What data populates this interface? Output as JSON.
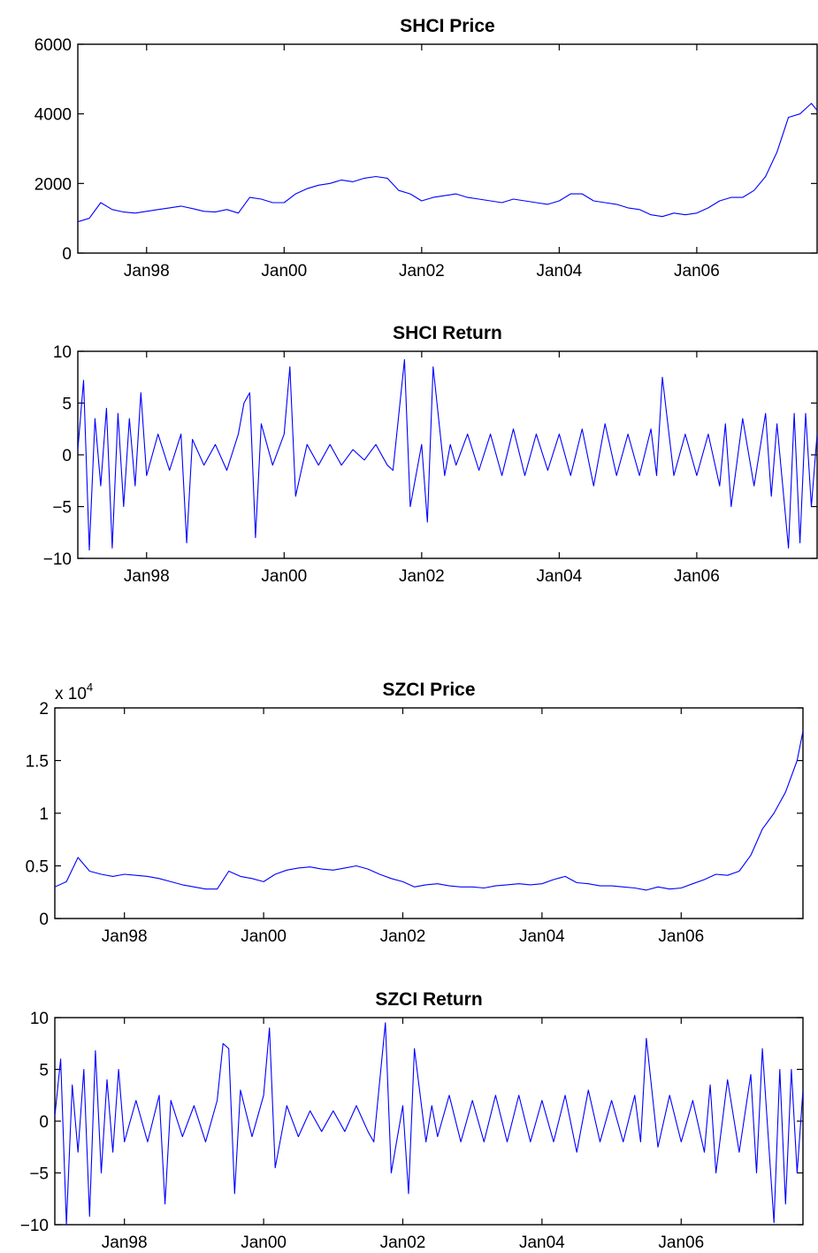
{
  "chart_data": [
    {
      "type": "line",
      "title": "SHCI Price",
      "xlabel": "",
      "ylabel": "",
      "x_range": [
        "1997-01",
        "2007-10"
      ],
      "ylim": [
        0,
        6000
      ],
      "yticks": [
        0,
        2000,
        4000,
        6000
      ],
      "ytick_labels": [
        "0",
        "2000",
        "4000",
        "6000"
      ],
      "y_exponent_label": "",
      "xticks": [
        "Jan98",
        "Jan00",
        "Jan02",
        "Jan04",
        "Jan06"
      ],
      "grid": false,
      "series": [
        {
          "color": "#0000ff",
          "x": [
            "1997-01",
            "1997-03",
            "1997-05",
            "1997-07",
            "1997-09",
            "1997-11",
            "1998-01",
            "1998-03",
            "1998-05",
            "1998-07",
            "1998-09",
            "1998-11",
            "1999-01",
            "1999-03",
            "1999-05",
            "1999-07",
            "1999-09",
            "1999-11",
            "2000-01",
            "2000-03",
            "2000-05",
            "2000-07",
            "2000-09",
            "2000-11",
            "2001-01",
            "2001-03",
            "2001-05",
            "2001-07",
            "2001-09",
            "2001-11",
            "2002-01",
            "2002-03",
            "2002-05",
            "2002-07",
            "2002-09",
            "2002-11",
            "2003-01",
            "2003-03",
            "2003-05",
            "2003-07",
            "2003-09",
            "2003-11",
            "2004-01",
            "2004-03",
            "2004-05",
            "2004-07",
            "2004-09",
            "2004-11",
            "2005-01",
            "2005-03",
            "2005-05",
            "2005-07",
            "2005-09",
            "2005-11",
            "2006-01",
            "2006-03",
            "2006-05",
            "2006-07",
            "2006-09",
            "2006-11",
            "2007-01",
            "2007-03",
            "2007-05",
            "2007-07",
            "2007-09",
            "2007-10"
          ],
          "values": [
            900,
            1000,
            1450,
            1250,
            1180,
            1150,
            1200,
            1250,
            1300,
            1350,
            1280,
            1200,
            1180,
            1250,
            1150,
            1600,
            1550,
            1450,
            1450,
            1700,
            1850,
            1950,
            2000,
            2100,
            2050,
            2150,
            2200,
            2150,
            1800,
            1700,
            1500,
            1600,
            1650,
            1700,
            1600,
            1550,
            1500,
            1450,
            1550,
            1500,
            1450,
            1400,
            1500,
            1700,
            1700,
            1500,
            1450,
            1400,
            1300,
            1250,
            1100,
            1050,
            1150,
            1100,
            1150,
            1300,
            1500,
            1600,
            1600,
            1800,
            2200,
            2900,
            3900,
            4000,
            4300,
            4100
          ]
        }
      ]
    },
    {
      "type": "line",
      "title": "SHCI Return",
      "xlabel": "",
      "ylabel": "",
      "x_range": [
        "1997-01",
        "2007-10"
      ],
      "ylim": [
        -10,
        10
      ],
      "yticks": [
        -10,
        -5,
        0,
        5,
        10
      ],
      "ytick_labels": [
        "−10",
        "−5",
        "0",
        "5",
        "10"
      ],
      "y_exponent_label": "",
      "xticks": [
        "Jan98",
        "Jan00",
        "Jan02",
        "Jan04",
        "Jan06"
      ],
      "grid": false,
      "series": [
        {
          "color": "#0000ff",
          "x": [
            "1997-01",
            "1997-02",
            "1997-03",
            "1997-04",
            "1997-05",
            "1997-06",
            "1997-07",
            "1997-08",
            "1997-09",
            "1997-10",
            "1997-11",
            "1997-12",
            "1998-01",
            "1998-03",
            "1998-05",
            "1998-07",
            "1998-08",
            "1998-09",
            "1998-11",
            "1999-01",
            "1999-03",
            "1999-05",
            "1999-06",
            "1999-07",
            "1999-08",
            "1999-09",
            "1999-11",
            "2000-01",
            "2000-02",
            "2000-03",
            "2000-05",
            "2000-07",
            "2000-09",
            "2000-11",
            "2001-01",
            "2001-03",
            "2001-05",
            "2001-07",
            "2001-08",
            "2001-10",
            "2001-11",
            "2002-01",
            "2002-02",
            "2002-03",
            "2002-05",
            "2002-06",
            "2002-07",
            "2002-09",
            "2002-11",
            "2003-01",
            "2003-03",
            "2003-05",
            "2003-07",
            "2003-09",
            "2003-11",
            "2004-01",
            "2004-03",
            "2004-05",
            "2004-07",
            "2004-09",
            "2004-11",
            "2005-01",
            "2005-03",
            "2005-05",
            "2005-06",
            "2005-07",
            "2005-09",
            "2005-11",
            "2006-01",
            "2006-03",
            "2006-05",
            "2006-06",
            "2006-07",
            "2006-09",
            "2006-11",
            "2007-01",
            "2007-02",
            "2007-03",
            "2007-05",
            "2007-06",
            "2007-07",
            "2007-08",
            "2007-09",
            "2007-10"
          ],
          "values": [
            0.5,
            7.2,
            -9.2,
            3.5,
            -3,
            4.5,
            -9,
            4,
            -5,
            3.5,
            -3,
            6,
            -2,
            2,
            -1.5,
            2,
            -8.5,
            1.5,
            -1,
            1,
            -1.5,
            2,
            5,
            6,
            -8,
            3,
            -1,
            2,
            8.5,
            -4,
            1,
            -1,
            1,
            -1,
            0.5,
            -0.5,
            1,
            -1,
            -1.5,
            9.2,
            -5,
            1,
            -6.5,
            8.5,
            -2,
            1,
            -1,
            2,
            -1.5,
            2,
            -2,
            2.5,
            -2,
            2,
            -1.5,
            2,
            -2,
            2.5,
            -3,
            3,
            -2,
            2,
            -2,
            2.5,
            -2,
            7.5,
            -2,
            2,
            -2,
            2,
            -3,
            3,
            -5,
            3.5,
            -3,
            4,
            -4,
            3,
            -9,
            4,
            -8.5,
            4,
            -5,
            2
          ]
        }
      ]
    },
    {
      "type": "line",
      "title": "SZCI Price",
      "xlabel": "",
      "ylabel": "",
      "x_range": [
        "1997-01",
        "2007-10"
      ],
      "ylim": [
        0,
        2
      ],
      "yticks": [
        0,
        0.5,
        1,
        1.5,
        2
      ],
      "ytick_labels": [
        "0",
        "0.5",
        "1",
        "1.5",
        "2"
      ],
      "y_exponent_label": "x 10",
      "y_exponent_sup": "4",
      "xticks": [
        "Jan98",
        "Jan00",
        "Jan02",
        "Jan04",
        "Jan06"
      ],
      "grid": false,
      "series": [
        {
          "color": "#0000ff",
          "x": [
            "1997-01",
            "1997-03",
            "1997-05",
            "1997-07",
            "1997-09",
            "1997-11",
            "1998-01",
            "1998-03",
            "1998-05",
            "1998-07",
            "1998-09",
            "1998-11",
            "1999-01",
            "1999-03",
            "1999-05",
            "1999-07",
            "1999-09",
            "1999-11",
            "2000-01",
            "2000-03",
            "2000-05",
            "2000-07",
            "2000-09",
            "2000-11",
            "2001-01",
            "2001-03",
            "2001-05",
            "2001-07",
            "2001-09",
            "2001-11",
            "2002-01",
            "2002-03",
            "2002-05",
            "2002-07",
            "2002-09",
            "2002-11",
            "2003-01",
            "2003-03",
            "2003-05",
            "2003-07",
            "2003-09",
            "2003-11",
            "2004-01",
            "2004-03",
            "2004-05",
            "2004-07",
            "2004-09",
            "2004-11",
            "2005-01",
            "2005-03",
            "2005-05",
            "2005-07",
            "2005-09",
            "2005-11",
            "2006-01",
            "2006-03",
            "2006-05",
            "2006-07",
            "2006-09",
            "2006-11",
            "2007-01",
            "2007-03",
            "2007-05",
            "2007-07",
            "2007-09",
            "2007-10"
          ],
          "values": [
            0.3,
            0.35,
            0.58,
            0.45,
            0.42,
            0.4,
            0.42,
            0.41,
            0.4,
            0.38,
            0.35,
            0.32,
            0.3,
            0.28,
            0.28,
            0.45,
            0.4,
            0.38,
            0.35,
            0.42,
            0.46,
            0.48,
            0.49,
            0.47,
            0.46,
            0.48,
            0.5,
            0.47,
            0.42,
            0.38,
            0.35,
            0.3,
            0.32,
            0.33,
            0.31,
            0.3,
            0.3,
            0.29,
            0.31,
            0.32,
            0.33,
            0.32,
            0.33,
            0.37,
            0.4,
            0.34,
            0.33,
            0.31,
            0.31,
            0.3,
            0.29,
            0.27,
            0.3,
            0.28,
            0.29,
            0.33,
            0.37,
            0.42,
            0.41,
            0.45,
            0.6,
            0.85,
            1.0,
            1.2,
            1.5,
            1.78
          ]
        }
      ]
    },
    {
      "type": "line",
      "title": "SZCI Return",
      "xlabel": "",
      "ylabel": "",
      "x_range": [
        "1997-01",
        "2007-10"
      ],
      "ylim": [
        -10,
        10
      ],
      "yticks": [
        -10,
        -5,
        0,
        5,
        10
      ],
      "ytick_labels": [
        "−10",
        "−5",
        "0",
        "5",
        "10"
      ],
      "y_exponent_label": "",
      "xticks": [
        "Jan98",
        "Jan00",
        "Jan02",
        "Jan04",
        "Jan06"
      ],
      "grid": false,
      "series": [
        {
          "color": "#0000ff",
          "x": [
            "1997-01",
            "1997-02",
            "1997-03",
            "1997-04",
            "1997-05",
            "1997-06",
            "1997-07",
            "1997-08",
            "1997-09",
            "1997-10",
            "1997-11",
            "1997-12",
            "1998-01",
            "1998-03",
            "1998-05",
            "1998-07",
            "1998-08",
            "1998-09",
            "1998-11",
            "1999-01",
            "1999-03",
            "1999-05",
            "1999-06",
            "1999-07",
            "1999-08",
            "1999-09",
            "1999-11",
            "2000-01",
            "2000-02",
            "2000-03",
            "2000-05",
            "2000-07",
            "2000-09",
            "2000-11",
            "2001-01",
            "2001-03",
            "2001-05",
            "2001-07",
            "2001-08",
            "2001-10",
            "2001-11",
            "2002-01",
            "2002-02",
            "2002-03",
            "2002-05",
            "2002-06",
            "2002-07",
            "2002-09",
            "2002-11",
            "2003-01",
            "2003-03",
            "2003-05",
            "2003-07",
            "2003-09",
            "2003-11",
            "2004-01",
            "2004-03",
            "2004-05",
            "2004-07",
            "2004-09",
            "2004-11",
            "2005-01",
            "2005-03",
            "2005-05",
            "2005-06",
            "2005-07",
            "2005-09",
            "2005-11",
            "2006-01",
            "2006-03",
            "2006-05",
            "2006-06",
            "2006-07",
            "2006-09",
            "2006-11",
            "2007-01",
            "2007-02",
            "2007-03",
            "2007-05",
            "2007-06",
            "2007-07",
            "2007-08",
            "2007-09",
            "2007-10"
          ],
          "values": [
            0.5,
            6,
            -10,
            3.5,
            -3,
            5,
            -9.2,
            6.8,
            -5,
            4,
            -3,
            5,
            -2,
            2,
            -2,
            2.5,
            -8,
            2,
            -1.5,
            1.5,
            -2,
            2,
            7.5,
            7,
            -7,
            3,
            -1.5,
            2.5,
            9,
            -4.5,
            1.5,
            -1.5,
            1,
            -1,
            1,
            -1,
            1.5,
            -1,
            -2,
            9.5,
            -5,
            1.5,
            -7,
            7,
            -2,
            1.5,
            -1.5,
            2.5,
            -2,
            2,
            -2,
            2.5,
            -2,
            2.5,
            -2,
            2,
            -2,
            2.5,
            -3,
            3,
            -2,
            2,
            -2,
            2.5,
            -2,
            8,
            -2.5,
            2.5,
            -2,
            2,
            -3,
            3.5,
            -5,
            4,
            -3,
            4.5,
            -5,
            7,
            -9.8,
            5,
            -8,
            5,
            -5,
            3
          ]
        }
      ]
    }
  ]
}
